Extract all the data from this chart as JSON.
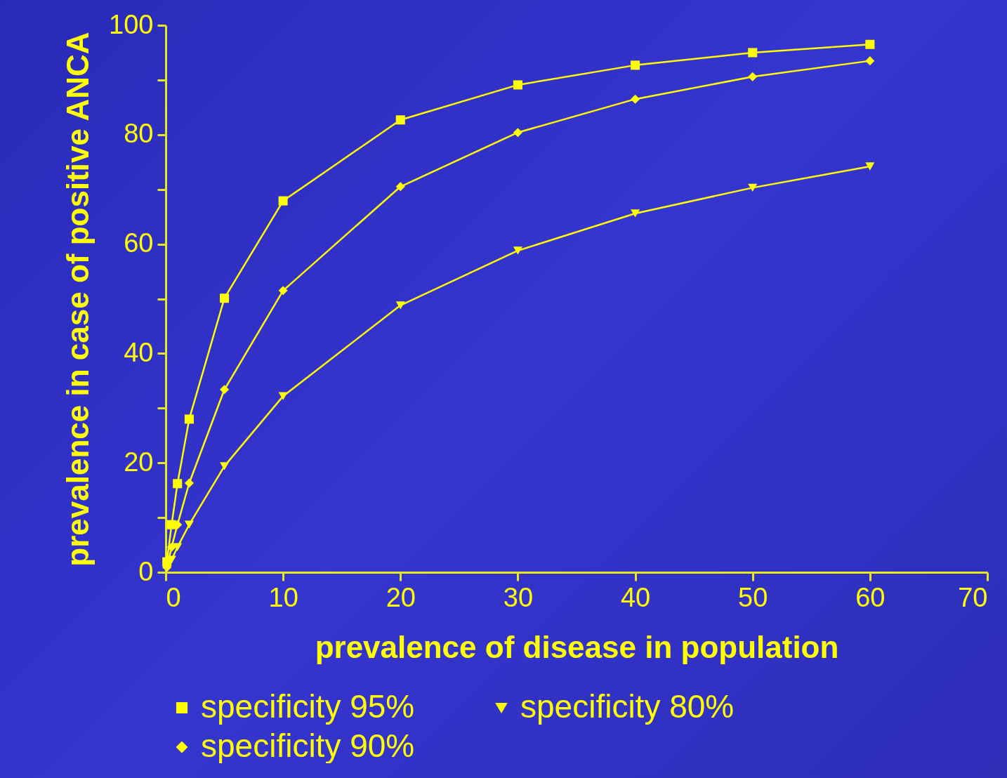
{
  "chart_data": {
    "type": "line",
    "xlabel": "prevalence of disease in population",
    "ylabel": "prevalence in case of positive ANCA",
    "x": [
      0.1,
      0.5,
      1,
      2,
      5,
      10,
      20,
      30,
      40,
      50,
      60
    ],
    "series": [
      {
        "name": "specificity 95%",
        "color": "#ffff00",
        "marker": "square",
        "values": [
          1.9,
          8.7,
          16.2,
          28.0,
          50.1,
          67.9,
          82.7,
          89.1,
          92.7,
          95.0,
          96.5
        ]
      },
      {
        "name": "specificity 80%",
        "color": "#ffff00",
        "marker": "triangle-down",
        "values": [
          null,
          2.3,
          4.6,
          8.7,
          19.4,
          32.2,
          48.8,
          58.8,
          65.6,
          70.3,
          74.2
        ]
      },
      {
        "name": "specificity 90%",
        "color": "#ffff00",
        "marker": "diamond",
        "values": [
          0.9,
          4.6,
          8.7,
          16.3,
          33.4,
          51.5,
          70.5,
          80.4,
          86.5,
          90.6,
          93.5
        ]
      }
    ],
    "xlim": [
      0,
      70
    ],
    "xticks": [
      0,
      10,
      20,
      30,
      40,
      50,
      60,
      70
    ],
    "ylim": [
      0,
      100
    ],
    "yticks": [
      0,
      {
        "value": 10,
        "label": null
      },
      20,
      {
        "value": 30,
        "label": null
      },
      40,
      {
        "value": 50,
        "label": null
      },
      60,
      {
        "value": 70,
        "label": null
      },
      80,
      {
        "value": 90,
        "label": null
      },
      100
    ],
    "grid": false,
    "legend": "bottom",
    "line_style": "solid"
  }
}
